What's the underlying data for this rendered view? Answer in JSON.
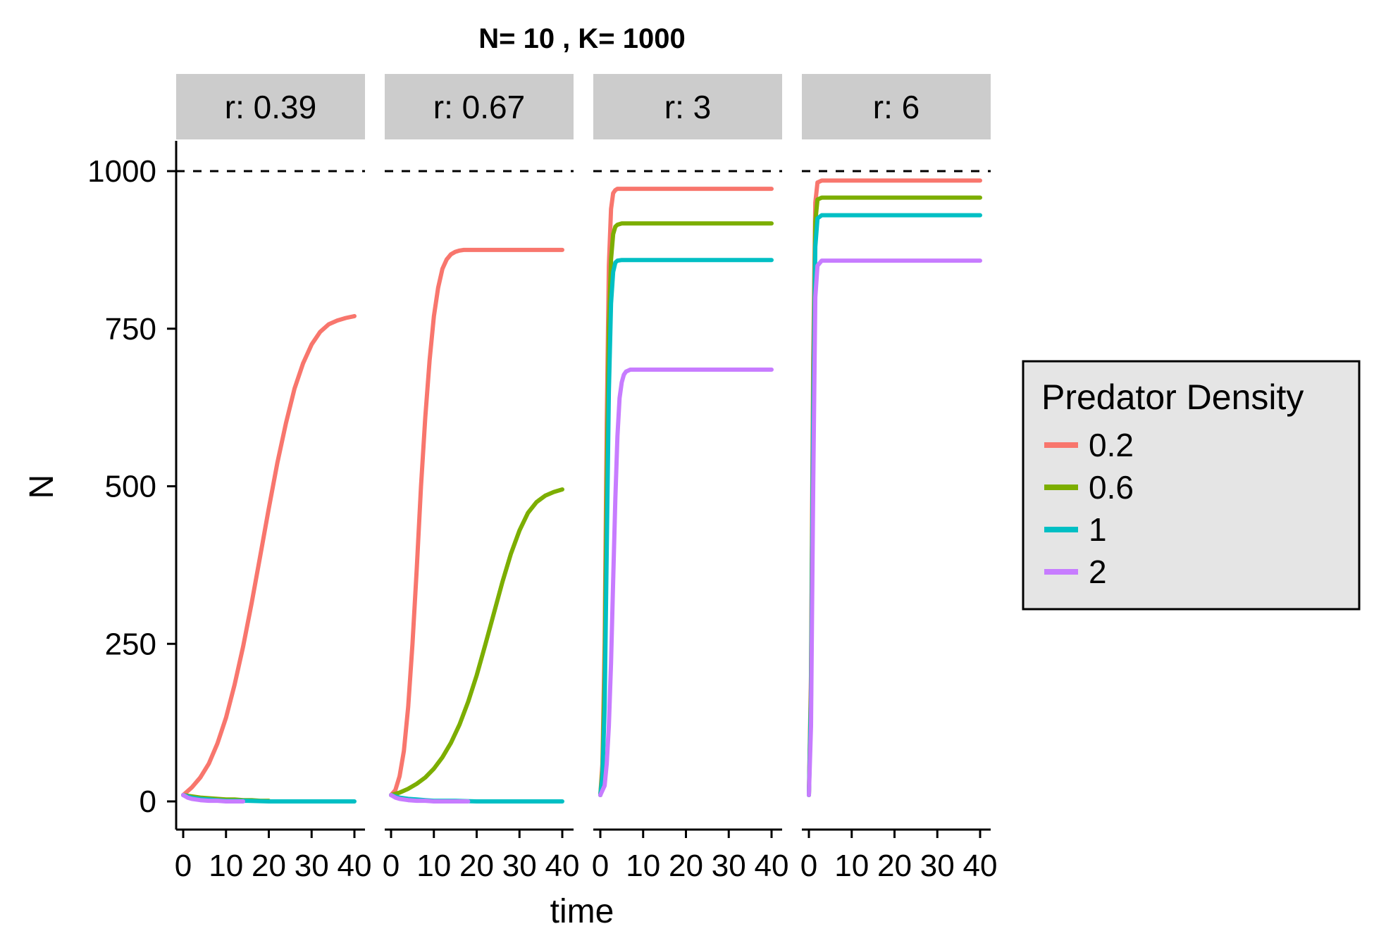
{
  "chart_data": {
    "type": "line",
    "title": "N= 10 , K= 1000",
    "xlabel": "time",
    "ylabel": "N",
    "xlim": [
      0,
      40
    ],
    "ylim": [
      0,
      1000
    ],
    "x_ticks": [
      0,
      10,
      20,
      30,
      40
    ],
    "x_tick_labels": [
      "0",
      "10",
      "20",
      "30",
      "40"
    ],
    "y_ticks": [
      0,
      250,
      500,
      750,
      1000
    ],
    "y_tick_labels": [
      "0",
      "250",
      "500",
      "750",
      "1000"
    ],
    "reference_line": {
      "y": 1000,
      "style": "dashed"
    },
    "grid": false,
    "legend": {
      "title": "Predator Density",
      "placement": "right",
      "entries": [
        "0.2",
        "0.6",
        "1",
        "2"
      ]
    },
    "series_colors": {
      "0.2": "#F8766D",
      "0.6": "#7CAE00",
      "1": "#00BFC4",
      "2": "#C77CFF"
    },
    "panels": [
      {
        "label": "r: 0.39",
        "series": [
          {
            "name": "0.2",
            "x": [
              0,
              2,
              4,
              6,
              8,
              10,
              12,
              14,
              16,
              18,
              20,
              22,
              24,
              26,
              28,
              30,
              32,
              34,
              36,
              38,
              40
            ],
            "y": [
              10,
              22,
              38,
              60,
              92,
              133,
              185,
              246,
              315,
              390,
              465,
              537,
              600,
              655,
              695,
              725,
              745,
              757,
              763,
              767,
              770
            ]
          },
          {
            "name": "0.6",
            "x": [
              0,
              2,
              4,
              6,
              8,
              10,
              12,
              14,
              16,
              18,
              20
            ],
            "y": [
              10,
              8,
              6,
              5,
              4,
              3,
              3,
              2,
              2,
              1,
              1
            ]
          },
          {
            "name": "1",
            "x": [
              0,
              2,
              4,
              6,
              8,
              10,
              15,
              20,
              25,
              30,
              35,
              40
            ],
            "y": [
              10,
              6,
              4,
              3,
              2,
              1,
              1,
              0,
              0,
              0,
              0,
              0
            ]
          },
          {
            "name": "2",
            "x": [
              0,
              1,
              2,
              3,
              4,
              6,
              8,
              10,
              12,
              14
            ],
            "y": [
              10,
              6,
              4,
              3,
              2,
              1,
              1,
              0,
              0,
              0
            ]
          }
        ]
      },
      {
        "label": "r: 0.67",
        "series": [
          {
            "name": "0.2",
            "x": [
              0,
              1,
              2,
              3,
              4,
              5,
              6,
              7,
              8,
              9,
              10,
              11,
              12,
              13,
              14,
              15,
              16,
              17,
              18,
              19,
              20,
              22,
              24,
              26,
              28,
              30,
              35,
              40
            ],
            "y": [
              10,
              18,
              40,
              80,
              150,
              250,
              370,
              500,
              610,
              700,
              770,
              815,
              845,
              860,
              868,
              872,
              874,
              875,
              875,
              875,
              875,
              875,
              875,
              875,
              875,
              875,
              875,
              875
            ]
          },
          {
            "name": "0.6",
            "x": [
              0,
              2,
              4,
              6,
              8,
              10,
              12,
              14,
              16,
              18,
              20,
              22,
              24,
              26,
              28,
              30,
              32,
              34,
              36,
              38,
              40
            ],
            "y": [
              10,
              14,
              20,
              28,
              38,
              52,
              70,
              93,
              122,
              158,
              200,
              248,
              298,
              348,
              393,
              430,
              458,
              475,
              485,
              491,
              495
            ]
          },
          {
            "name": "1",
            "x": [
              0,
              2,
              4,
              6,
              8,
              10,
              15,
              20,
              25,
              30,
              35,
              40
            ],
            "y": [
              10,
              6,
              4,
              3,
              2,
              1,
              1,
              0,
              0,
              0,
              0,
              0
            ]
          },
          {
            "name": "2",
            "x": [
              0,
              1,
              2,
              3,
              4,
              6,
              8,
              10,
              12,
              14,
              16,
              18
            ],
            "y": [
              10,
              6,
              4,
              3,
              2,
              1,
              1,
              0,
              0,
              0,
              0,
              0
            ]
          }
        ]
      },
      {
        "label": "r: 3",
        "series": [
          {
            "name": "0.2",
            "x": [
              0,
              0.5,
              1,
              1.5,
              2,
              2.5,
              3,
              3.5,
              4,
              5,
              10,
              20,
              30,
              40
            ],
            "y": [
              10,
              60,
              250,
              600,
              850,
              940,
              965,
              970,
              972,
              972,
              972,
              972,
              972,
              972
            ]
          },
          {
            "name": "0.6",
            "x": [
              0,
              0.5,
              1,
              1.5,
              2,
              2.5,
              3,
              3.5,
              4,
              5,
              10,
              20,
              30,
              40
            ],
            "y": [
              10,
              50,
              200,
              500,
              750,
              860,
              900,
              912,
              915,
              917,
              917,
              917,
              917,
              917
            ]
          },
          {
            "name": "1",
            "x": [
              0,
              0.5,
              1,
              1.5,
              2,
              2.5,
              3,
              3.5,
              4,
              5,
              10,
              20,
              30,
              40
            ],
            "y": [
              10,
              40,
              150,
              400,
              650,
              790,
              840,
              855,
              858,
              859,
              859,
              859,
              859,
              859
            ]
          },
          {
            "name": "2",
            "x": [
              0,
              1,
              1.5,
              2,
              2.5,
              3,
              3.5,
              4,
              4.5,
              5,
              5.5,
              6,
              7,
              8,
              10,
              20,
              30,
              40
            ],
            "y": [
              10,
              25,
              60,
              120,
              220,
              350,
              480,
              580,
              640,
              665,
              677,
              682,
              685,
              685,
              685,
              685,
              685,
              685
            ]
          }
        ]
      },
      {
        "label": "r: 6",
        "series": [
          {
            "name": "0.2",
            "x": [
              0,
              0.5,
              1,
              1.5,
              2,
              3,
              5,
              10,
              20,
              30,
              40
            ],
            "y": [
              10,
              200,
              700,
              950,
              982,
              985,
              985,
              985,
              985,
              985,
              985
            ]
          },
          {
            "name": "0.6",
            "x": [
              0,
              0.5,
              1,
              1.5,
              2,
              3,
              5,
              10,
              20,
              30,
              40
            ],
            "y": [
              10,
              180,
              650,
              920,
              955,
              958,
              958,
              958,
              958,
              958,
              958
            ]
          },
          {
            "name": "1",
            "x": [
              0,
              0.5,
              1,
              1.5,
              2,
              3,
              5,
              10,
              20,
              30,
              40
            ],
            "y": [
              10,
              160,
              600,
              880,
              925,
              930,
              930,
              930,
              930,
              930,
              930
            ]
          },
          {
            "name": "2",
            "x": [
              0,
              0.5,
              1,
              1.5,
              2,
              3,
              5,
              10,
              20,
              30,
              40
            ],
            "y": [
              10,
              120,
              500,
              800,
              850,
              858,
              858,
              858,
              858,
              858,
              858
            ]
          }
        ]
      }
    ]
  }
}
